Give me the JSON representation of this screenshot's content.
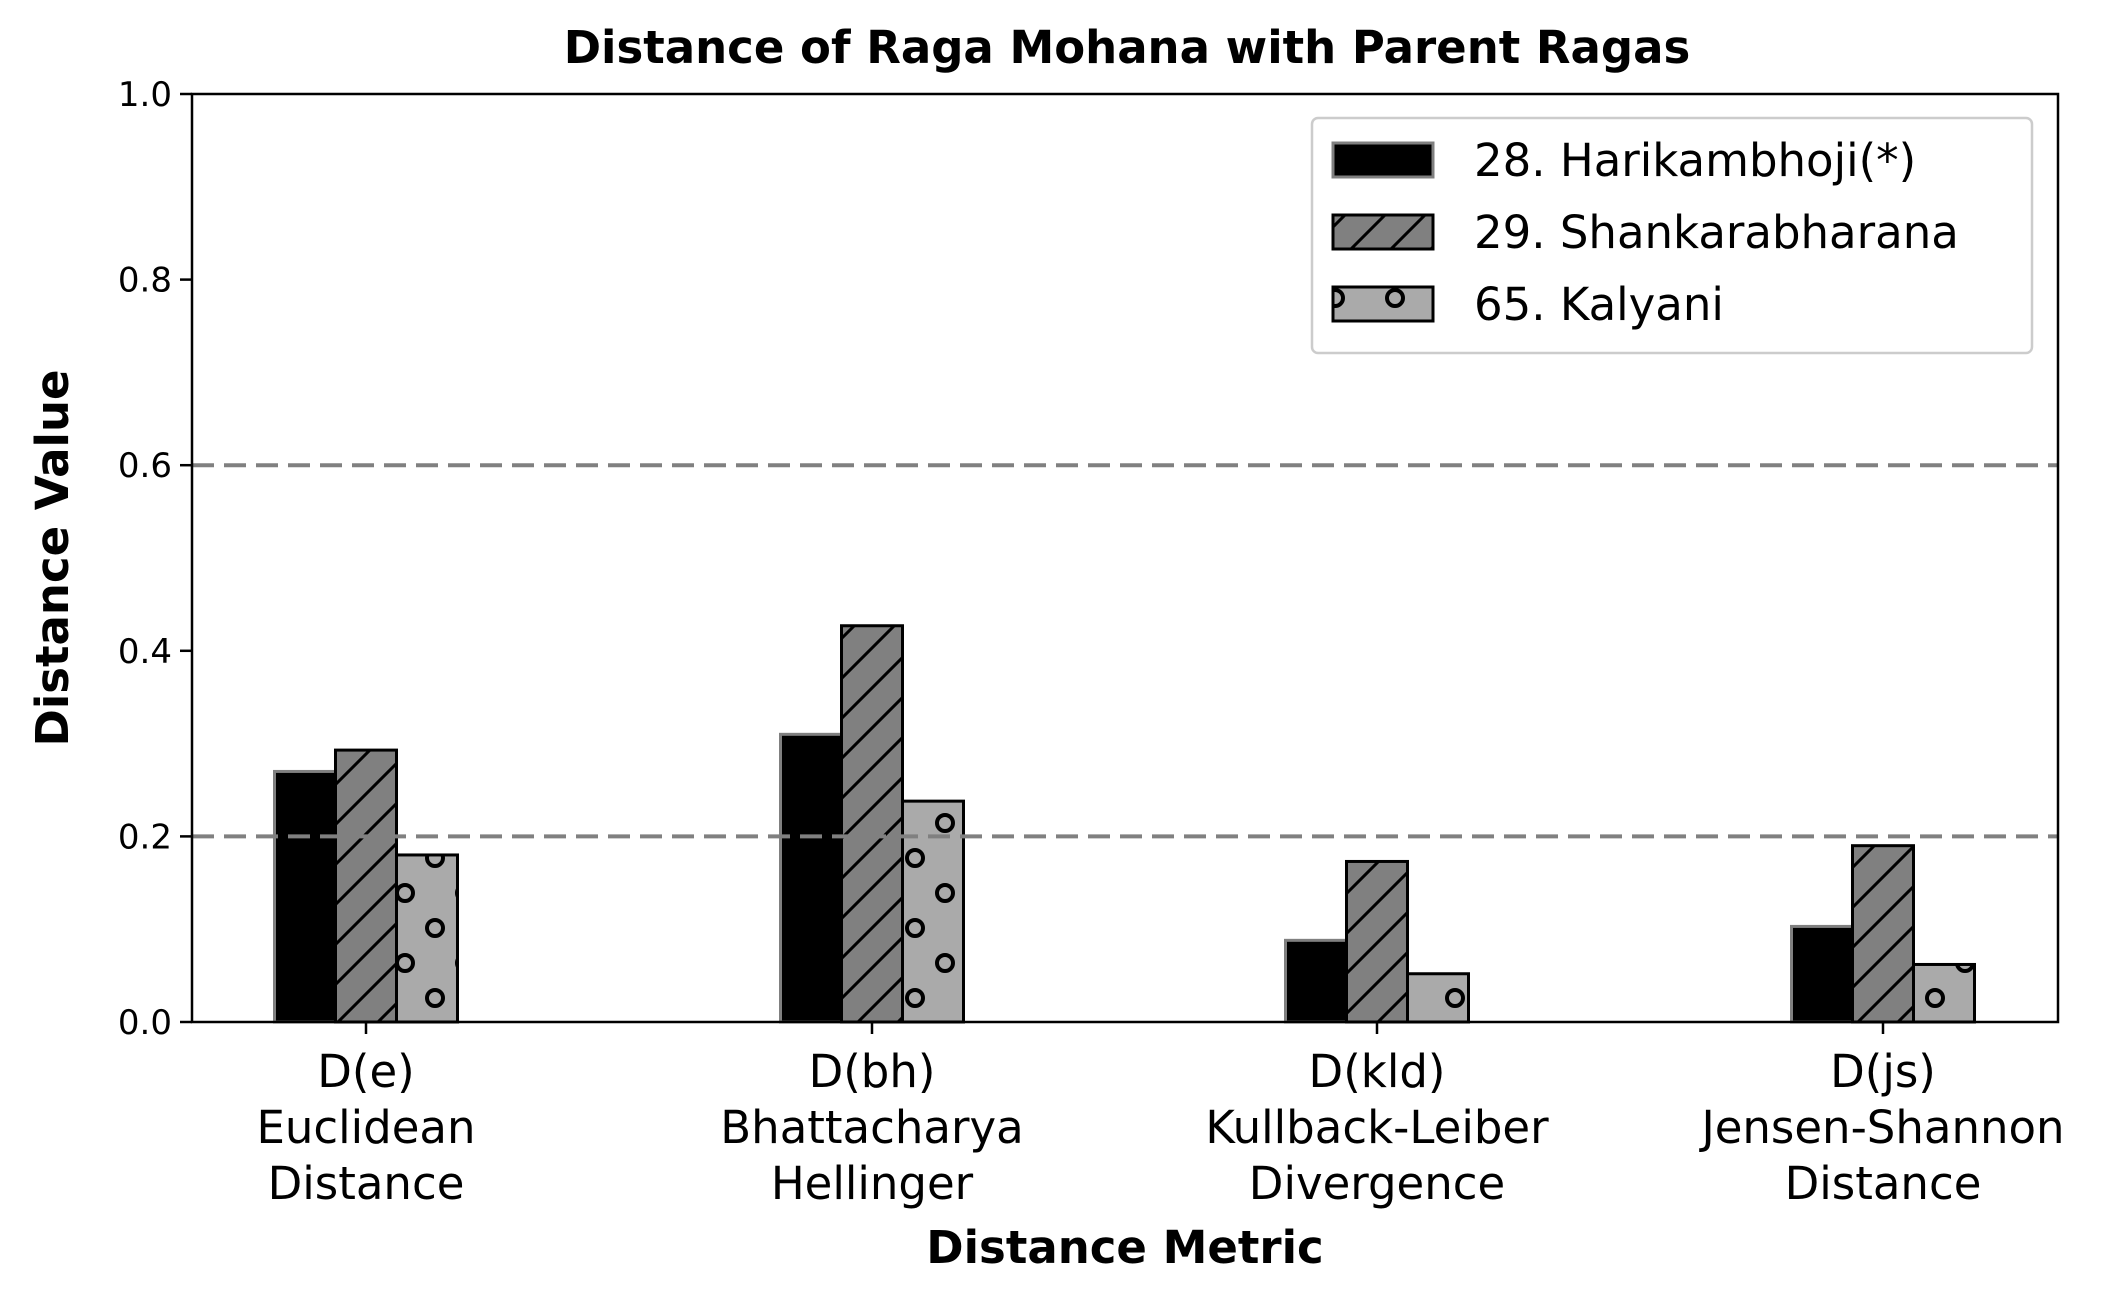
{
  "chart_data": {
    "type": "bar",
    "title": "Distance of Raga Mohana with Parent Ragas",
    "xlabel": "Distance Metric",
    "ylabel": "Distance Value",
    "ylim": [
      0,
      1.0
    ],
    "yticks": [
      "0.0",
      "0.2",
      "0.4",
      "0.6",
      "0.8",
      "1.0"
    ],
    "ytick_values": [
      0,
      0.2,
      0.4,
      0.6,
      0.8,
      1.0
    ],
    "categories": [
      [
        "D(e)",
        "Euclidean",
        "Distance"
      ],
      [
        "D(bh)",
        "Bhattacharya",
        "Hellinger"
      ],
      [
        "D(kld)",
        "Kullback-Leiber",
        "Divergence"
      ],
      [
        "D(js)",
        "Jensen-Shannon",
        "Distance"
      ]
    ],
    "series": [
      {
        "name": "28. Harikambhoji(*)",
        "values": [
          0.27,
          0.31,
          0.088,
          0.103
        ],
        "color": "#000000",
        "edge": "#808080",
        "pattern": "solid"
      },
      {
        "name": "29. Shankarabharana",
        "values": [
          0.293,
          0.427,
          0.173,
          0.19
        ],
        "color": "#808080",
        "edge": "#000000",
        "pattern": "diagonal"
      },
      {
        "name": "65. Kalyani",
        "values": [
          0.18,
          0.238,
          0.052,
          0.062
        ],
        "color": "#aaaaaa",
        "edge": "#000000",
        "pattern": "circles"
      }
    ],
    "reference_lines": [
      0.2,
      0.6
    ],
    "reference_line_color": "#808080",
    "legend_position": "top-right",
    "grid": false
  }
}
